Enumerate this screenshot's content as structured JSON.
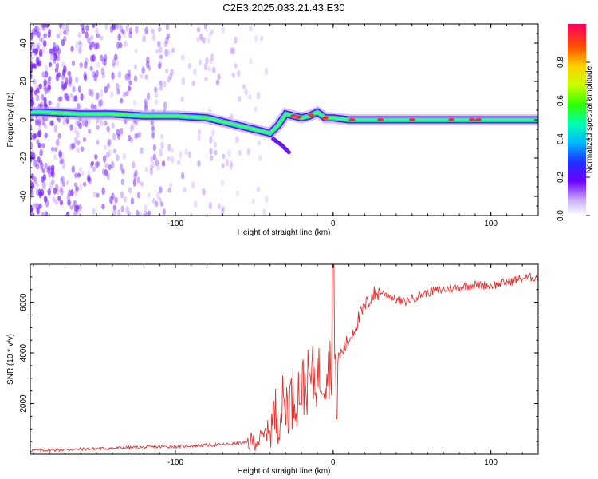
{
  "title": "C2E3.2025.033.21.43.E30",
  "colors": {
    "snr_line": "#e8302c",
    "spectrogram_scatter": "#7a22ff"
  },
  "chart_data": [
    {
      "type": "heatmap",
      "xlabel": "Height of straight line (km)",
      "ylabel": "Frequency (Hz)",
      "xlim": [
        -192,
        130
      ],
      "ylim": [
        -50,
        50
      ],
      "xticks": [
        "-100",
        "0",
        "100"
      ],
      "yticks": [
        "-40",
        "-20",
        "0",
        "20",
        "40"
      ],
      "colorbar": {
        "label": "Normalized spectral amplitude",
        "range": [
          0,
          1
        ],
        "ticks": [
          "0.0",
          "0.2",
          "0.4",
          "0.6",
          "0.8"
        ],
        "colormap": "rainbow"
      },
      "ridge": {
        "x": [
          -185,
          -160,
          -140,
          -120,
          -100,
          -80,
          -65,
          -55,
          -45,
          -40,
          -35,
          -30,
          -25,
          -20,
          -15,
          -10,
          -5,
          0,
          10,
          20,
          40,
          60,
          80,
          100,
          130
        ],
        "y": [
          4,
          3,
          3,
          2,
          2,
          1,
          -2,
          -4,
          -6,
          -7,
          -3,
          3,
          2,
          1,
          2,
          4,
          1,
          1,
          0,
          0,
          0,
          0,
          0,
          0,
          0
        ]
      },
      "branch": {
        "x": [
          -38,
          -33,
          -28
        ],
        "y": [
          -10,
          -13,
          -17
        ]
      }
    },
    {
      "type": "line",
      "xlabel": "Height of straight line (km)",
      "ylabel": "SNR (10 * v/v)",
      "xlim": [
        -192,
        130
      ],
      "ylim": [
        0,
        7500
      ],
      "xticks": [
        "-100",
        "0",
        "100"
      ],
      "yticks": [
        "2000",
        "4000",
        "6000"
      ],
      "series": [
        {
          "x": [
            -192,
            -170,
            -150,
            -130,
            -110,
            -90,
            -70,
            -55,
            -45,
            -40,
            -35,
            -30,
            -25,
            -20,
            -15,
            -10,
            -5,
            -2,
            0,
            2,
            5,
            10,
            15,
            20,
            25,
            30,
            35,
            40,
            45,
            50,
            60,
            70,
            80,
            90,
            100,
            110,
            120,
            130
          ],
          "y": [
            150,
            180,
            220,
            260,
            290,
            330,
            380,
            450,
            600,
            1100,
            1700,
            2000,
            2300,
            2600,
            2900,
            3100,
            3300,
            3500,
            3700,
            3600,
            4000,
            4500,
            5200,
            5800,
            6300,
            6400,
            6300,
            6100,
            6000,
            6150,
            6400,
            6500,
            6600,
            6700,
            6650,
            6800,
            6950,
            7000
          ]
        }
      ]
    }
  ]
}
